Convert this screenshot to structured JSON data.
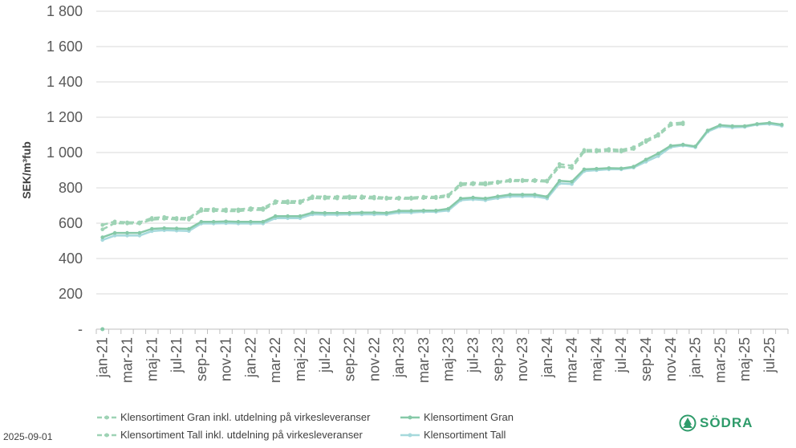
{
  "chart_data": {
    "type": "line",
    "ylabel": "SEK/m³fub",
    "ylim": [
      0,
      1800
    ],
    "yticks": [
      {
        "value": 0,
        "label": "-"
      },
      {
        "value": 200,
        "label": "200"
      },
      {
        "value": 400,
        "label": "400"
      },
      {
        "value": 600,
        "label": "600"
      },
      {
        "value": 800,
        "label": "800"
      },
      {
        "value": 1000,
        "label": "1 000"
      },
      {
        "value": 1200,
        "label": "1 200"
      },
      {
        "value": 1400,
        "label": "1 400"
      },
      {
        "value": 1600,
        "label": "1 600"
      },
      {
        "value": 1800,
        "label": "1 800"
      }
    ],
    "grid": true,
    "legend_position": "bottom",
    "categories": [
      "jan-21",
      "feb-21",
      "mar-21",
      "apr-21",
      "maj-21",
      "jun-21",
      "jul-21",
      "aug-21",
      "sep-21",
      "okt-21",
      "nov-21",
      "dec-21",
      "jan-22",
      "feb-22",
      "mar-22",
      "apr-22",
      "maj-22",
      "jun-22",
      "jul-22",
      "aug-22",
      "sep-22",
      "okt-22",
      "nov-22",
      "dec-22",
      "jan-23",
      "feb-23",
      "mar-23",
      "apr-23",
      "maj-23",
      "jun-23",
      "jul-23",
      "aug-23",
      "sep-23",
      "okt-23",
      "nov-23",
      "dec-23",
      "jan-24",
      "feb-24",
      "mar-24",
      "apr-24",
      "maj-24",
      "jun-24",
      "jul-24",
      "aug-24",
      "sep-24",
      "okt-24",
      "nov-24",
      "dec-24",
      "jan-25",
      "feb-25",
      "mar-25",
      "apr-25",
      "maj-25",
      "jun-25",
      "jul-25",
      "aug-25"
    ],
    "tick_labels": [
      "jan-21",
      "mar-21",
      "maj-21",
      "jul-21",
      "sep-21",
      "nov-21",
      "jan-22",
      "mar-22",
      "maj-22",
      "jul-22",
      "sep-22",
      "nov-22",
      "jan-23",
      "mar-23",
      "maj-23",
      "jul-23",
      "sep-23",
      "nov-23",
      "jan-24",
      "mar-24",
      "maj-24",
      "jul-24",
      "sep-24",
      "nov-24",
      "jan-25",
      "mar-25",
      "maj-25",
      "jul-25"
    ],
    "series": [
      {
        "name": "Klensortiment Gran inkl. utdelning på virkesleveranser",
        "style": "dashed",
        "color": "#9ed3b5",
        "values": [
          590,
          610,
          605,
          605,
          630,
          635,
          630,
          630,
          680,
          680,
          678,
          678,
          685,
          685,
          725,
          725,
          725,
          752,
          750,
          750,
          752,
          752,
          750,
          745,
          745,
          745,
          750,
          750,
          760,
          825,
          828,
          828,
          835,
          845,
          845,
          845,
          842,
          935,
          925,
          1015,
          1015,
          1020,
          1015,
          1030,
          1070,
          1105,
          1165,
          1170,
          null,
          null,
          null,
          null,
          null,
          null,
          null,
          null
        ]
      },
      {
        "name": "Klensortiment Tall inkl. utdelning på virkesleveranser",
        "style": "dashed",
        "color": "#9ed3b5",
        "values": [
          565,
          600,
          598,
          598,
          620,
          625,
          622,
          620,
          670,
          670,
          668,
          668,
          675,
          675,
          715,
          715,
          715,
          742,
          740,
          740,
          742,
          742,
          740,
          738,
          738,
          738,
          742,
          742,
          752,
          815,
          820,
          818,
          828,
          838,
          838,
          838,
          835,
          920,
          912,
          1005,
          1005,
          1010,
          1005,
          1020,
          1060,
          1095,
          1155,
          1160,
          null,
          null,
          null,
          null,
          null,
          null,
          null,
          null
        ]
      },
      {
        "name": "Klensortiment Gran",
        "style": "solid",
        "color": "#86c9a8",
        "values": [
          520,
          545,
          545,
          545,
          568,
          572,
          570,
          568,
          608,
          608,
          610,
          608,
          608,
          608,
          640,
          640,
          640,
          660,
          658,
          658,
          658,
          660,
          660,
          658,
          670,
          670,
          672,
          672,
          682,
          740,
          745,
          740,
          752,
          762,
          762,
          762,
          750,
          840,
          835,
          905,
          908,
          912,
          910,
          920,
          960,
          995,
          1038,
          1045,
          1035,
          1125,
          1155,
          1150,
          1150,
          1162,
          1168,
          1158
        ]
      },
      {
        "name": "Klensortiment Tall",
        "style": "solid",
        "color": "#a6d9dc",
        "values": [
          505,
          530,
          530,
          530,
          555,
          560,
          558,
          556,
          598,
          598,
          600,
          598,
          598,
          598,
          628,
          628,
          628,
          650,
          648,
          648,
          650,
          650,
          650,
          650,
          660,
          660,
          665,
          665,
          672,
          730,
          735,
          730,
          742,
          752,
          752,
          752,
          740,
          825,
          822,
          895,
          900,
          905,
          905,
          915,
          948,
          980,
          1030,
          1040,
          1030,
          1118,
          1148,
          1142,
          1145,
          1158,
          1162,
          1152
        ]
      }
    ],
    "stray_point": {
      "x": "jan-21",
      "value": 0
    }
  },
  "footer": {
    "date": "2025-09-01",
    "logo_text": "SÖDRA"
  }
}
